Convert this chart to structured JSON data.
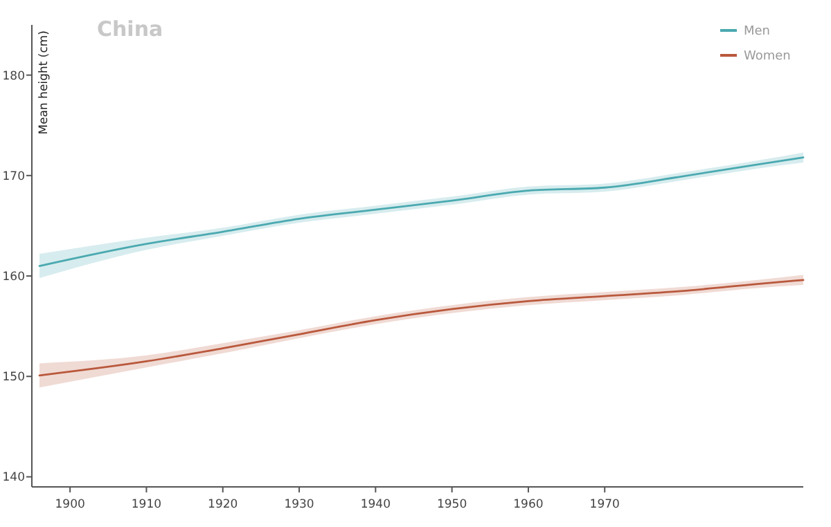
{
  "chart_data": {
    "type": "line",
    "title": "China",
    "ylabel": "Mean height (cm)",
    "x": [
      1896,
      1910,
      1920,
      1930,
      1940,
      1950,
      1960,
      1970,
      1980,
      1990,
      1996
    ],
    "series": [
      {
        "name": "Men",
        "color": "#4aa9b0",
        "values": [
          161.0,
          163.2,
          164.4,
          165.7,
          166.6,
          167.5,
          168.5,
          168.8,
          169.9,
          171.1,
          171.8
        ],
        "lower": [
          159.8,
          162.6,
          164.0,
          165.3,
          166.2,
          167.1,
          168.1,
          168.4,
          169.5,
          170.7,
          171.3
        ],
        "upper": [
          162.2,
          163.8,
          164.8,
          166.1,
          167.0,
          167.9,
          168.9,
          169.2,
          170.3,
          171.5,
          172.3
        ]
      },
      {
        "name": "Women",
        "color": "#b9583c",
        "values": [
          150.1,
          151.5,
          152.8,
          154.2,
          155.6,
          156.7,
          157.5,
          158.0,
          158.5,
          159.2,
          159.6
        ],
        "lower": [
          148.9,
          150.9,
          152.3,
          153.8,
          155.2,
          156.3,
          157.1,
          157.6,
          158.1,
          158.8,
          159.1
        ],
        "upper": [
          151.3,
          152.1,
          153.3,
          154.6,
          156.0,
          157.1,
          157.9,
          158.4,
          158.9,
          159.6,
          160.1
        ]
      }
    ],
    "xlim": [
      1895,
      1996
    ],
    "xticks": [
      1900,
      1910,
      1920,
      1930,
      1940,
      1950,
      1960,
      1970
    ],
    "ylim": [
      139,
      185
    ],
    "yticks": [
      140,
      150,
      160,
      170,
      180
    ],
    "grid": false,
    "legend": "top right"
  }
}
